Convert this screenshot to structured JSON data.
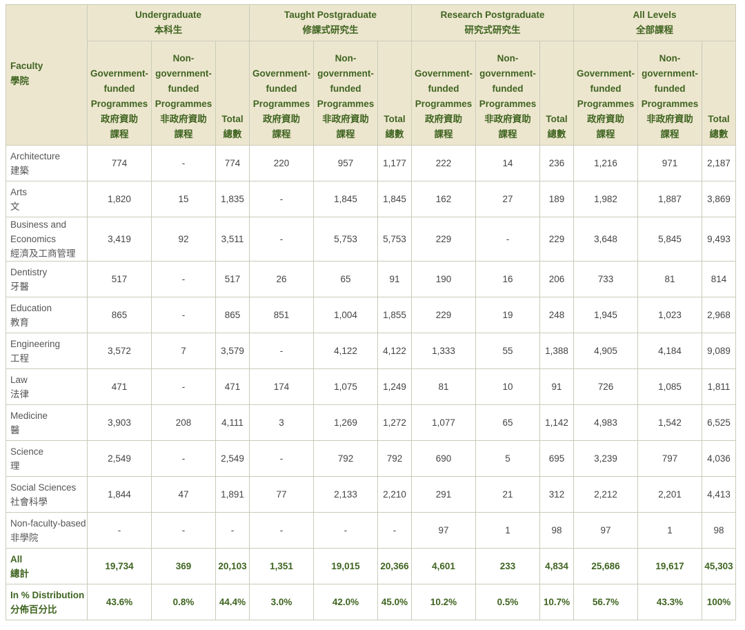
{
  "header": {
    "faculty": {
      "en": "Faculty",
      "zh": "學院"
    },
    "levels": [
      {
        "en": "Undergraduate",
        "zh": "本科生"
      },
      {
        "en": "Taught Postgraduate",
        "zh": "修課式研究生"
      },
      {
        "en": "Research Postgraduate",
        "zh": "研究式研究生"
      },
      {
        "en": "All Levels",
        "zh": "全部課程"
      }
    ],
    "gov": {
      "l1": "Government-",
      "l2": "funded",
      "l3": "Programmes",
      "zh1": "政府資助",
      "zh2": "課程"
    },
    "nongov": {
      "l1": "Non-",
      "l2": "government-",
      "l3": "funded",
      "l4": "Programmes",
      "zh1": "非政府資助",
      "zh2": "課程"
    },
    "total": {
      "en": "Total",
      "zh": "總數"
    }
  },
  "rows": [
    {
      "en": [
        "Architecture"
      ],
      "zh": "建築",
      "values": [
        "774",
        "-",
        "774",
        "220",
        "957",
        "1,177",
        "222",
        "14",
        "236",
        "1,216",
        "971",
        "2,187"
      ]
    },
    {
      "en": [
        "Arts"
      ],
      "zh": "文",
      "values": [
        "1,820",
        "15",
        "1,835",
        "-",
        "1,845",
        "1,845",
        "162",
        "27",
        "189",
        "1,982",
        "1,887",
        "3,869"
      ]
    },
    {
      "en": [
        "Business and",
        "Economics"
      ],
      "zh": "經濟及工商管理",
      "values": [
        "3,419",
        "92",
        "3,511",
        "-",
        "5,753",
        "5,753",
        "229",
        "-",
        "229",
        "3,648",
        "5,845",
        "9,493"
      ]
    },
    {
      "en": [
        "Dentistry"
      ],
      "zh": "牙醫",
      "values": [
        "517",
        "-",
        "517",
        "26",
        "65",
        "91",
        "190",
        "16",
        "206",
        "733",
        "81",
        "814"
      ]
    },
    {
      "en": [
        "Education"
      ],
      "zh": "教育",
      "values": [
        "865",
        "-",
        "865",
        "851",
        "1,004",
        "1,855",
        "229",
        "19",
        "248",
        "1,945",
        "1,023",
        "2,968"
      ]
    },
    {
      "en": [
        "Engineering"
      ],
      "zh": "工程",
      "values": [
        "3,572",
        "7",
        "3,579",
        "-",
        "4,122",
        "4,122",
        "1,333",
        "55",
        "1,388",
        "4,905",
        "4,184",
        "9,089"
      ]
    },
    {
      "en": [
        "Law"
      ],
      "zh": "法律",
      "values": [
        "471",
        "-",
        "471",
        "174",
        "1,075",
        "1,249",
        "81",
        "10",
        "91",
        "726",
        "1,085",
        "1,811"
      ]
    },
    {
      "en": [
        "Medicine"
      ],
      "zh": "醫",
      "values": [
        "3,903",
        "208",
        "4,111",
        "3",
        "1,269",
        "1,272",
        "1,077",
        "65",
        "1,142",
        "4,983",
        "1,542",
        "6,525"
      ]
    },
    {
      "en": [
        "Science"
      ],
      "zh": "理",
      "values": [
        "2,549",
        "-",
        "2,549",
        "-",
        "792",
        "792",
        "690",
        "5",
        "695",
        "3,239",
        "797",
        "4,036"
      ]
    },
    {
      "en": [
        "Social Sciences"
      ],
      "zh": "社會科學",
      "values": [
        "1,844",
        "47",
        "1,891",
        "77",
        "2,133",
        "2,210",
        "291",
        "21",
        "312",
        "2,212",
        "2,201",
        "4,413"
      ]
    },
    {
      "en": [
        "Non-faculty-based"
      ],
      "zh": "非學院",
      "values": [
        "-",
        "-",
        "-",
        "-",
        "-",
        "-",
        "97",
        "1",
        "98",
        "97",
        "1",
        "98"
      ]
    }
  ],
  "summary": [
    {
      "en": "All",
      "zh": "總計",
      "values": [
        "19,734",
        "369",
        "20,103",
        "1,351",
        "19,015",
        "20,366",
        "4,601",
        "233",
        "4,834",
        "25,686",
        "19,617",
        "45,303"
      ]
    },
    {
      "en": "In % Distribution",
      "zh": "分佈百分比",
      "values": [
        "43.6%",
        "0.8%",
        "44.4%",
        "3.0%",
        "42.0%",
        "45.0%",
        "10.2%",
        "0.5%",
        "10.7%",
        "56.7%",
        "43.3%",
        "100%"
      ]
    }
  ]
}
